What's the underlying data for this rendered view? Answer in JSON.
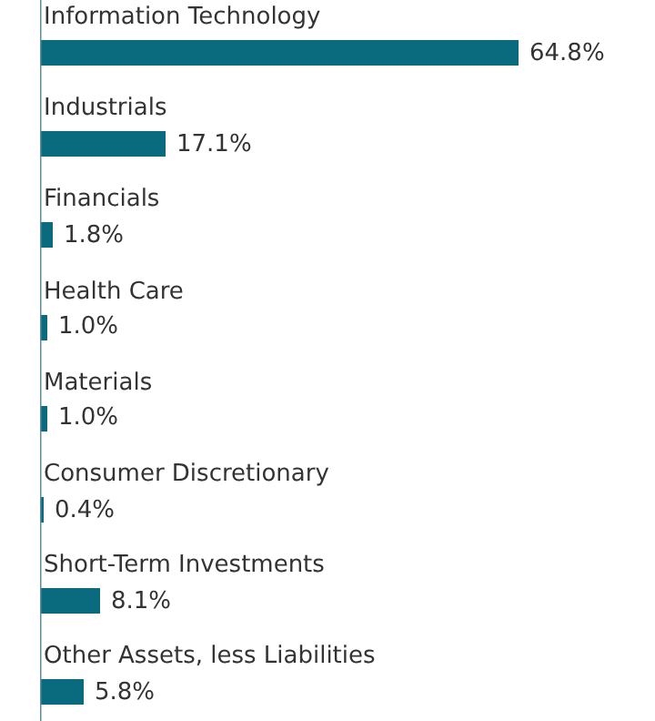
{
  "chart_data": {
    "type": "bar",
    "orientation": "horizontal",
    "categories": [
      "Information Technology",
      "Industrials",
      "Financials",
      "Health Care",
      "Materials",
      "Consumer Discretionary",
      "Short-Term Investments",
      "Other Assets, less Liabilities"
    ],
    "values": [
      64.8,
      17.1,
      1.8,
      1.0,
      1.0,
      0.4,
      8.1,
      5.8
    ],
    "value_labels": [
      "64.8%",
      "17.1%",
      "1.8%",
      "1.0%",
      "1.0%",
      "0.4%",
      "8.1%",
      "5.8%"
    ],
    "color": "#0b6b7e"
  }
}
